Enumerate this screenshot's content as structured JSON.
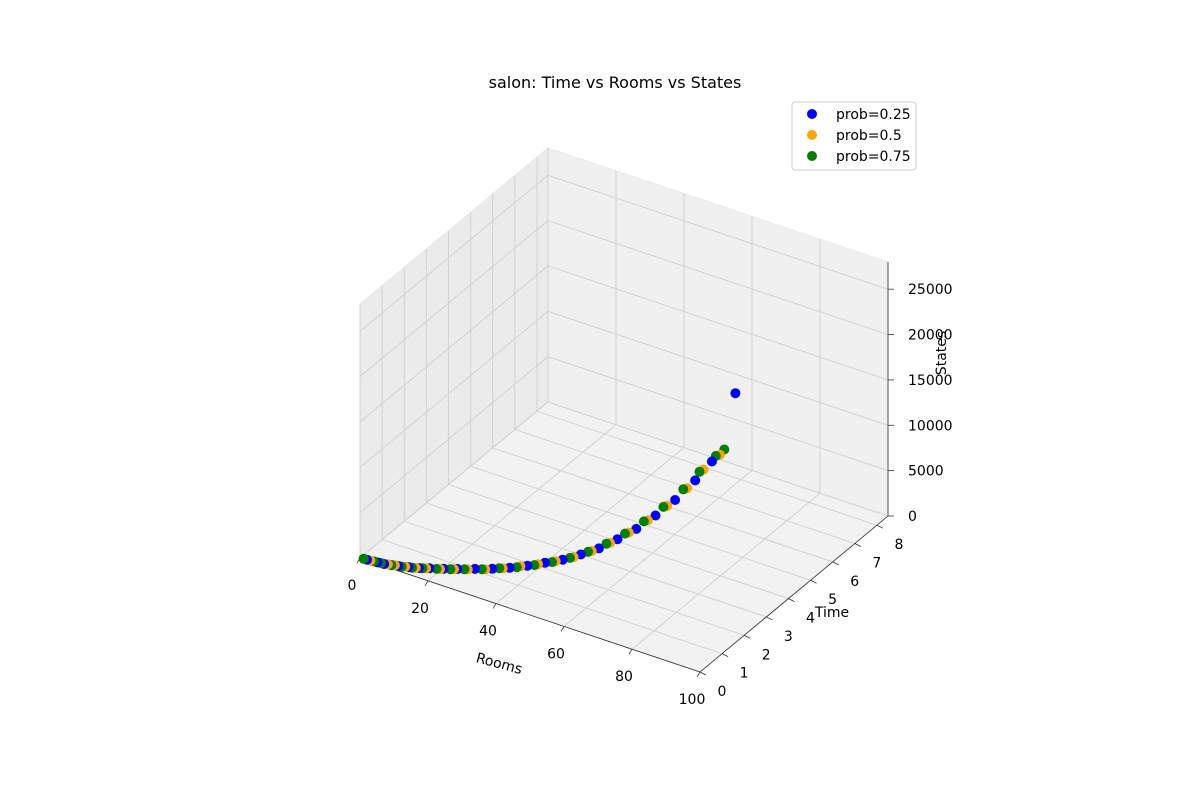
{
  "chart_data": {
    "type": "scatter",
    "projection": "3d",
    "title": "salon: Time vs Rooms vs States",
    "xlabel": "Rooms",
    "ylabel": "Time",
    "zlabel": "States",
    "xlim": [
      0,
      100
    ],
    "ylim": [
      0,
      8.5
    ],
    "zlim": [
      0,
      28000
    ],
    "xticks": [
      0,
      20,
      40,
      60,
      80,
      100
    ],
    "yticks": [
      0,
      1,
      2,
      3,
      4,
      5,
      6,
      7,
      8
    ],
    "ytick_labels": [
      "0",
      "1",
      "2",
      "3",
      "4",
      "5",
      "6",
      "7",
      "8"
    ],
    "zticks": [
      0,
      5000,
      10000,
      15000,
      20000,
      25000
    ],
    "grid": true,
    "legend_position": "top-right",
    "series": [
      {
        "name": "prob=0.25",
        "color": "#0000ff",
        "points": [
          [
            2,
            0.01,
            30
          ],
          [
            5,
            0.02,
            100
          ],
          [
            7,
            0.02,
            180
          ],
          [
            9,
            0.03,
            300
          ],
          [
            11,
            0.04,
            420
          ],
          [
            14,
            0.05,
            650
          ],
          [
            17,
            0.06,
            900
          ],
          [
            20,
            0.07,
            1250
          ],
          [
            24,
            0.09,
            1650
          ],
          [
            28,
            0.1,
            2100
          ],
          [
            33,
            0.12,
            2700
          ],
          [
            38,
            0.14,
            3300
          ],
          [
            43,
            0.16,
            4000
          ],
          [
            48,
            0.19,
            4800
          ],
          [
            53,
            0.22,
            5700
          ],
          [
            58,
            0.25,
            6600
          ],
          [
            63,
            0.3,
            7700
          ],
          [
            68,
            0.35,
            8900
          ],
          [
            73,
            0.42,
            10400
          ],
          [
            78,
            0.5,
            12000
          ],
          [
            83,
            0.6,
            13900
          ],
          [
            88,
            0.72,
            16000
          ],
          [
            93,
            0.86,
            18500
          ],
          [
            97,
            1.0,
            20800
          ],
          [
            100,
            1.6,
            27500
          ]
        ]
      },
      {
        "name": "prob=0.5",
        "color": "#ffa500",
        "points": [
          [
            1,
            0.01,
            25
          ],
          [
            3,
            0.01,
            70
          ],
          [
            6,
            0.02,
            150
          ],
          [
            8,
            0.03,
            250
          ],
          [
            10,
            0.04,
            380
          ],
          [
            13,
            0.05,
            560
          ],
          [
            16,
            0.06,
            800
          ],
          [
            19,
            0.07,
            1100
          ],
          [
            23,
            0.08,
            1500
          ],
          [
            27,
            0.1,
            1950
          ],
          [
            31,
            0.11,
            2400
          ],
          [
            36,
            0.13,
            3000
          ],
          [
            41,
            0.15,
            3700
          ],
          [
            46,
            0.18,
            4500
          ],
          [
            51,
            0.21,
            5300
          ],
          [
            56,
            0.24,
            6200
          ],
          [
            61,
            0.28,
            7200
          ],
          [
            66,
            0.33,
            8400
          ],
          [
            71,
            0.39,
            9800
          ],
          [
            76,
            0.47,
            11400
          ],
          [
            81,
            0.56,
            13200
          ],
          [
            86,
            0.67,
            15200
          ],
          [
            91,
            0.8,
            17500
          ],
          [
            95,
            0.93,
            19800
          ],
          [
            99,
            1.05,
            21700
          ]
        ]
      },
      {
        "name": "prob=0.75",
        "color": "#008000",
        "points": [
          [
            1,
            0.01,
            20
          ],
          [
            4,
            0.02,
            90
          ],
          [
            6,
            0.02,
            160
          ],
          [
            9,
            0.03,
            280
          ],
          [
            12,
            0.04,
            470
          ],
          [
            15,
            0.05,
            700
          ],
          [
            18,
            0.06,
            1000
          ],
          [
            22,
            0.08,
            1400
          ],
          [
            26,
            0.09,
            1850
          ],
          [
            30,
            0.11,
            2300
          ],
          [
            35,
            0.13,
            2900
          ],
          [
            40,
            0.15,
            3600
          ],
          [
            45,
            0.17,
            4300
          ],
          [
            50,
            0.2,
            5100
          ],
          [
            55,
            0.23,
            6000
          ],
          [
            60,
            0.27,
            7000
          ],
          [
            65,
            0.32,
            8200
          ],
          [
            70,
            0.38,
            9600
          ],
          [
            75,
            0.45,
            11200
          ],
          [
            80,
            0.54,
            13000
          ],
          [
            85,
            0.65,
            15000
          ],
          [
            90,
            0.78,
            17300
          ],
          [
            94,
            0.9,
            19500
          ],
          [
            98,
            1.02,
            21500
          ],
          [
            100,
            1.1,
            22300
          ]
        ]
      }
    ]
  }
}
